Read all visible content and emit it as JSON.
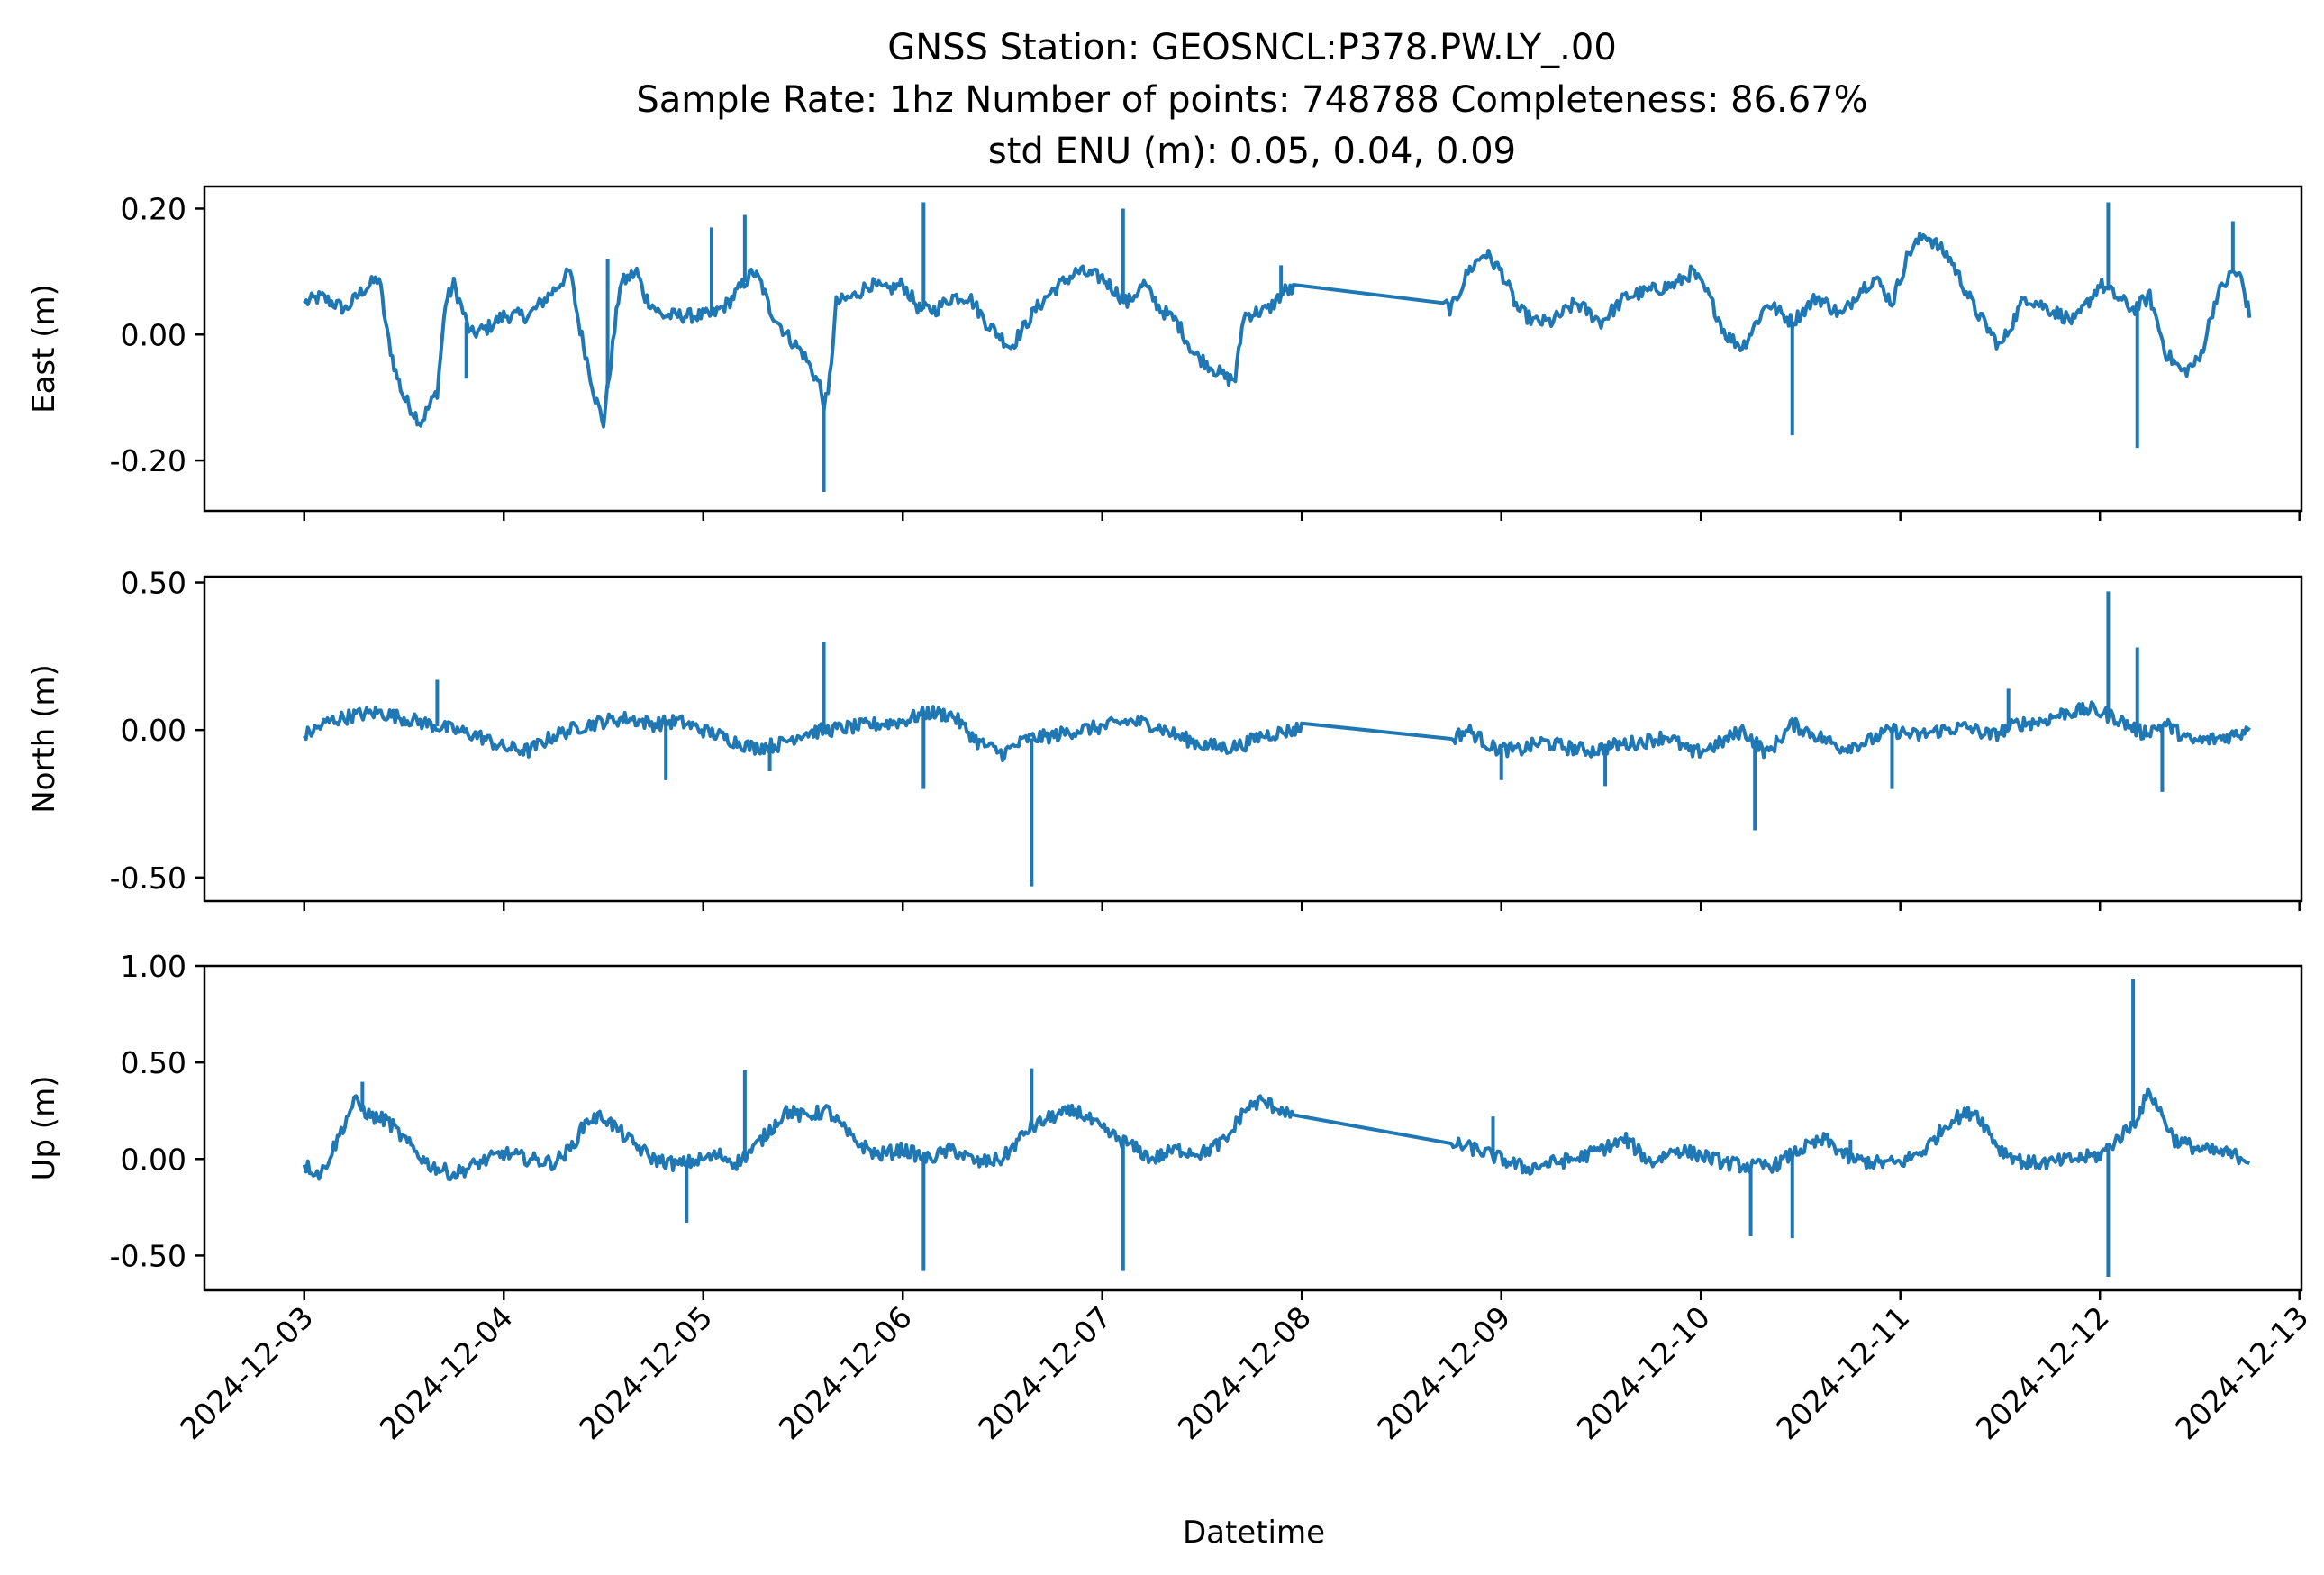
{
  "chart_data": {
    "type": "line",
    "title_lines": [
      "GNSS Station: GEOSNCL:P378.PW.LY_.00",
      "Sample Rate: 1hz   Number of points: 748788    Completeness:  86.67%",
      "std ENU (m):  0.05, 0.04, 0.09"
    ],
    "xlabel": "Datetime",
    "x_ticks": [
      "2024-12-03",
      "2024-12-04",
      "2024-12-05",
      "2024-12-06",
      "2024-12-07",
      "2024-12-08",
      "2024-12-09",
      "2024-12-10",
      "2024-12-11",
      "2024-12-12",
      "2024-12-13"
    ],
    "xlim": [
      "2024-12-02T12:00",
      "2024-12-13T00:15"
    ],
    "grid": false,
    "line_color": "#1f77b4",
    "panels": [
      {
        "ylabel": "East (m)",
        "ylim": [
          -0.28,
          0.235
        ],
        "y_ticks": [
          {
            "value": -0.2,
            "label": "-0.20"
          },
          {
            "value": 0.0,
            "label": "0.00"
          },
          {
            "value": 0.2,
            "label": "0.20"
          }
        ],
        "x": [
          "2024-12-03T00:00",
          "2024-12-03T02:00",
          "2024-12-03T05:00",
          "2024-12-03T07:00",
          "2024-12-03T09:00",
          "2024-12-03T10:00",
          "2024-12-03T11:00",
          "2024-12-03T12:00",
          "2024-12-03T13:00",
          "2024-12-03T14:00",
          "2024-12-03T16:00",
          "2024-12-03T17:00",
          "2024-12-03T18:00",
          "2024-12-03T20:00",
          "2024-12-03T22:00",
          "2024-12-04T00:00",
          "2024-12-04T03:00",
          "2024-12-04T06:00",
          "2024-12-04T08:00",
          "2024-12-04T09:00",
          "2024-12-04T10:00",
          "2024-12-04T11:00",
          "2024-12-04T12:00",
          "2024-12-04T14:00",
          "2024-12-04T16:00",
          "2024-12-04T17:00",
          "2024-12-04T19:00",
          "2024-12-04T22:00",
          "2024-12-05T01:00",
          "2024-12-05T03:00",
          "2024-12-05T06:00",
          "2024-12-05T07:00",
          "2024-12-05T08:00",
          "2024-12-05T10:00",
          "2024-12-05T12:00",
          "2024-12-05T14:00",
          "2024-12-05T14:30",
          "2024-12-05T15:00",
          "2024-12-05T16:00",
          "2024-12-05T18:00",
          "2024-12-05T20:00",
          "2024-12-05T22:00",
          "2024-12-06T00:00",
          "2024-12-06T02:00",
          "2024-12-06T04:00",
          "2024-12-06T06:00",
          "2024-12-06T08:00",
          "2024-12-06T10:00",
          "2024-12-06T13:00",
          "2024-12-06T16:00",
          "2024-12-06T18:00",
          "2024-12-06T21:00",
          "2024-12-07T00:00",
          "2024-12-07T03:00",
          "2024-12-07T05:00",
          "2024-12-07T07:00",
          "2024-12-07T09:00",
          "2024-12-07T11:00",
          "2024-12-07T13:00",
          "2024-12-07T15:00",
          "2024-12-07T16:00",
          "2024-12-07T17:00",
          "2024-12-07T20:00",
          "2024-12-07T22:00",
          "2024-12-07T23:00",
          "2024-12-08T17:00",
          "2024-12-08T18:00",
          "2024-12-08T20:00",
          "2024-12-08T22:00",
          "2024-12-09T00:00",
          "2024-12-09T02:00",
          "2024-12-09T04:00",
          "2024-12-09T06:00",
          "2024-12-09T09:00",
          "2024-12-09T12:00",
          "2024-12-09T15:00",
          "2024-12-09T18:00",
          "2024-12-09T21:00",
          "2024-12-09T23:00",
          "2024-12-10T01:00",
          "2024-12-10T03:00",
          "2024-12-10T05:00",
          "2024-12-10T08:00",
          "2024-12-10T11:00",
          "2024-12-10T14:00",
          "2024-12-10T17:00",
          "2024-12-10T19:00",
          "2024-12-10T21:00",
          "2024-12-10T23:00",
          "2024-12-11T01:00",
          "2024-12-11T03:00",
          "2024-12-11T06:00",
          "2024-12-11T09:00",
          "2024-12-11T12:00",
          "2024-12-11T15:00",
          "2024-12-11T18:00",
          "2024-12-11T21:00",
          "2024-12-12T00:00",
          "2024-12-12T02:00",
          "2024-12-12T04:00",
          "2024-12-12T06:00",
          "2024-12-12T08:00",
          "2024-12-12T10:00",
          "2024-12-12T12:00",
          "2024-12-12T14:00",
          "2024-12-12T16:00",
          "2024-12-12T17:00",
          "2024-12-12T18:00"
        ],
        "y": [
          0.05,
          0.06,
          0.04,
          0.07,
          0.09,
          0.0,
          -0.06,
          -0.1,
          -0.12,
          -0.14,
          -0.09,
          0.05,
          0.08,
          0.0,
          0.01,
          0.03,
          0.03,
          0.07,
          0.1,
          0.02,
          -0.04,
          -0.1,
          -0.14,
          0.08,
          0.1,
          0.06,
          0.03,
          0.03,
          0.03,
          0.05,
          0.1,
          0.08,
          0.04,
          0.0,
          -0.03,
          -0.08,
          -0.11,
          -0.1,
          0.05,
          0.06,
          0.08,
          0.07,
          0.08,
          0.04,
          0.04,
          0.06,
          0.06,
          0.02,
          -0.02,
          0.04,
          0.07,
          0.1,
          0.09,
          0.05,
          0.08,
          0.04,
          0.02,
          -0.03,
          -0.05,
          -0.07,
          -0.07,
          0.03,
          0.04,
          0.07,
          0.07,
          0.05,
          0.04,
          0.1,
          0.13,
          0.1,
          0.04,
          0.02,
          0.02,
          0.05,
          0.02,
          0.06,
          0.07,
          0.08,
          0.1,
          0.06,
          0.0,
          -0.02,
          0.05,
          0.02,
          0.06,
          0.03,
          0.07,
          0.09,
          0.05,
          0.13,
          0.16,
          0.12,
          0.04,
          -0.02,
          0.06,
          0.04,
          0.02,
          0.08,
          0.06,
          0.04,
          0.06,
          -0.03,
          -0.06,
          -0.04,
          0.06,
          0.1,
          0.09,
          0.03
        ],
        "spikes": [
          {
            "x": "2024-12-05T05:00",
            "y": 0.19
          },
          {
            "x": "2024-12-05T14:30",
            "y": -0.25
          },
          {
            "x": "2024-12-06T02:30",
            "y": 0.21
          },
          {
            "x": "2024-12-07T02:30",
            "y": 0.2
          },
          {
            "x": "2024-12-10T11:00",
            "y": -0.16
          },
          {
            "x": "2024-12-12T01:00",
            "y": 0.21
          },
          {
            "x": "2024-12-12T04:30",
            "y": -0.18
          },
          {
            "x": "2024-12-12T16:00",
            "y": 0.18
          },
          {
            "x": "2024-12-04T12:30",
            "y": 0.12
          },
          {
            "x": "2024-12-03T19:30",
            "y": -0.07
          },
          {
            "x": "2024-12-07T21:30",
            "y": 0.11
          },
          {
            "x": "2024-12-05T01:00",
            "y": 0.17
          }
        ]
      },
      {
        "ylabel": "North (m)",
        "ylim": [
          -0.58,
          0.52
        ],
        "y_ticks": [
          {
            "value": -0.5,
            "label": "-0.50"
          },
          {
            "value": 0.0,
            "label": "0.00"
          },
          {
            "value": 0.5,
            "label": "0.50"
          }
        ],
        "x": [
          "2024-12-03T00:00",
          "2024-12-03T03:00",
          "2024-12-03T06:00",
          "2024-12-03T09:00",
          "2024-12-03T12:00",
          "2024-12-03T15:00",
          "2024-12-03T18:00",
          "2024-12-03T21:00",
          "2024-12-04T00:00",
          "2024-12-04T03:00",
          "2024-12-04T06:00",
          "2024-12-04T09:00",
          "2024-12-04T12:00",
          "2024-12-04T15:00",
          "2024-12-04T18:00",
          "2024-12-04T21:00",
          "2024-12-05T00:00",
          "2024-12-05T03:00",
          "2024-12-05T06:00",
          "2024-12-05T09:00",
          "2024-12-05T12:00",
          "2024-12-05T15:00",
          "2024-12-05T18:00",
          "2024-12-05T21:00",
          "2024-12-06T00:00",
          "2024-12-06T03:00",
          "2024-12-06T06:00",
          "2024-12-06T09:00",
          "2024-12-06T12:00",
          "2024-12-06T15:00",
          "2024-12-06T18:00",
          "2024-12-06T21:00",
          "2024-12-07T00:00",
          "2024-12-07T03:00",
          "2024-12-07T06:00",
          "2024-12-07T09:00",
          "2024-12-07T12:00",
          "2024-12-07T15:00",
          "2024-12-07T17:00",
          "2024-12-07T19:00",
          "2024-12-07T21:00",
          "2024-12-07T23:00",
          "2024-12-08T00:00",
          "2024-12-08T18:00",
          "2024-12-08T20:00",
          "2024-12-08T23:00",
          "2024-12-09T02:00",
          "2024-12-09T05:00",
          "2024-12-09T08:00",
          "2024-12-09T11:00",
          "2024-12-09T14:00",
          "2024-12-09T17:00",
          "2024-12-09T20:00",
          "2024-12-09T23:00",
          "2024-12-10T02:00",
          "2024-12-10T05:00",
          "2024-12-10T08:00",
          "2024-12-10T11:00",
          "2024-12-10T14:00",
          "2024-12-10T17:00",
          "2024-12-10T20:00",
          "2024-12-10T23:00",
          "2024-12-11T02:00",
          "2024-12-11T05:00",
          "2024-12-11T08:00",
          "2024-12-11T11:00",
          "2024-12-11T14:00",
          "2024-12-11T17:00",
          "2024-12-11T20:00",
          "2024-12-11T23:00",
          "2024-12-12T02:00",
          "2024-12-12T05:00",
          "2024-12-12T08:00",
          "2024-12-12T11:00",
          "2024-12-12T14:00",
          "2024-12-12T17:00",
          "2024-12-12T18:00"
        ],
        "y": [
          -0.02,
          0.03,
          0.05,
          0.06,
          0.04,
          0.02,
          0.0,
          -0.02,
          -0.06,
          -0.07,
          -0.02,
          0.01,
          0.03,
          0.04,
          0.02,
          0.03,
          0.0,
          -0.03,
          -0.06,
          -0.05,
          -0.01,
          0.0,
          0.01,
          0.02,
          0.03,
          0.06,
          0.05,
          -0.04,
          -0.08,
          -0.03,
          -0.02,
          0.0,
          0.01,
          0.03,
          0.02,
          -0.02,
          -0.05,
          -0.06,
          -0.05,
          -0.02,
          -0.01,
          0.0,
          0.01,
          -0.03,
          0.0,
          -0.06,
          -0.07,
          -0.04,
          -0.06,
          -0.07,
          -0.05,
          -0.04,
          -0.02,
          -0.08,
          -0.05,
          0.0,
          -0.08,
          0.02,
          -0.02,
          -0.06,
          -0.04,
          0.0,
          -0.02,
          0.0,
          0.01,
          -0.02,
          0.02,
          0.03,
          0.06,
          0.07,
          0.04,
          -0.01,
          0.02,
          -0.04,
          -0.03,
          -0.01,
          0.02
        ],
        "spikes": [
          {
            "x": "2024-12-05T14:30",
            "y": 0.3
          },
          {
            "x": "2024-12-06T15:30",
            "y": -0.53
          },
          {
            "x": "2024-12-10T06:30",
            "y": -0.34
          },
          {
            "x": "2024-12-12T01:00",
            "y": 0.47
          },
          {
            "x": "2024-12-12T04:30",
            "y": 0.28
          },
          {
            "x": "2024-12-12T07:30",
            "y": -0.21
          },
          {
            "x": "2024-12-03T16:00",
            "y": 0.17
          },
          {
            "x": "2024-12-04T19:30",
            "y": -0.17
          },
          {
            "x": "2024-12-06T02:30",
            "y": -0.2
          },
          {
            "x": "2024-12-09T00:00",
            "y": -0.17
          },
          {
            "x": "2024-12-09T12:30",
            "y": -0.19
          },
          {
            "x": "2024-12-10T23:00",
            "y": -0.2
          },
          {
            "x": "2024-12-11T13:00",
            "y": 0.14
          },
          {
            "x": "2024-12-05T08:00",
            "y": -0.14
          }
        ]
      },
      {
        "ylabel": "Up (m)",
        "ylim": [
          -0.68,
          1.0
        ],
        "y_ticks": [
          {
            "value": -0.5,
            "label": "-0.50"
          },
          {
            "value": 0.0,
            "label": "0.00"
          },
          {
            "value": 0.5,
            "label": "0.50"
          },
          {
            "value": 1.0,
            "label": "1.00"
          }
        ],
        "x": [
          "2024-12-03T00:00",
          "2024-12-03T02:00",
          "2024-12-03T04:00",
          "2024-12-03T06:00",
          "2024-12-03T08:00",
          "2024-12-03T10:00",
          "2024-12-03T12:00",
          "2024-12-03T15:00",
          "2024-12-03T18:00",
          "2024-12-03T21:00",
          "2024-12-04T00:00",
          "2024-12-04T03:00",
          "2024-12-04T06:00",
          "2024-12-04T08:00",
          "2024-12-04T10:00",
          "2024-12-04T12:00",
          "2024-12-04T15:00",
          "2024-12-04T18:00",
          "2024-12-04T21:00",
          "2024-12-05T00:00",
          "2024-12-05T02:00",
          "2024-12-05T04:00",
          "2024-12-05T06:00",
          "2024-12-05T08:00",
          "2024-12-05T10:00",
          "2024-12-05T12:00",
          "2024-12-05T15:00",
          "2024-12-05T18:00",
          "2024-12-05T21:00",
          "2024-12-06T00:00",
          "2024-12-06T03:00",
          "2024-12-06T06:00",
          "2024-12-06T09:00",
          "2024-12-06T12:00",
          "2024-12-06T15:00",
          "2024-12-06T18:00",
          "2024-12-06T21:00",
          "2024-12-07T00:00",
          "2024-12-07T03:00",
          "2024-12-07T06:00",
          "2024-12-07T09:00",
          "2024-12-07T12:00",
          "2024-12-07T15:00",
          "2024-12-07T17:00",
          "2024-12-07T19:00",
          "2024-12-07T22:00",
          "2024-12-07T23:00",
          "2024-12-08T18:00",
          "2024-12-08T21:00",
          "2024-12-09T00:00",
          "2024-12-09T03:00",
          "2024-12-09T06:00",
          "2024-12-09T09:00",
          "2024-12-09T12:00",
          "2024-12-09T15:00",
          "2024-12-09T18:00",
          "2024-12-09T21:00",
          "2024-12-10T00:00",
          "2024-12-10T03:00",
          "2024-12-10T06:00",
          "2024-12-10T09:00",
          "2024-12-10T12:00",
          "2024-12-10T15:00",
          "2024-12-10T18:00",
          "2024-12-10T21:00",
          "2024-12-11T00:00",
          "2024-12-11T03:00",
          "2024-12-11T06:00",
          "2024-12-11T09:00",
          "2024-12-11T12:00",
          "2024-12-11T15:00",
          "2024-12-11T18:00",
          "2024-12-11T21:00",
          "2024-12-12T00:00",
          "2024-12-12T02:00",
          "2024-12-12T04:00",
          "2024-12-12T06:00",
          "2024-12-12T09:00",
          "2024-12-12T12:00",
          "2024-12-12T15:00",
          "2024-12-12T18:00"
        ],
        "y": [
          -0.03,
          -0.08,
          0.1,
          0.3,
          0.22,
          0.2,
          0.1,
          -0.03,
          -0.08,
          -0.02,
          0.03,
          0.0,
          -0.02,
          0.05,
          0.2,
          0.22,
          0.1,
          0.0,
          -0.03,
          0.0,
          0.02,
          -0.02,
          0.05,
          0.15,
          0.25,
          0.22,
          0.25,
          0.1,
          0.02,
          0.05,
          0.0,
          0.05,
          -0.02,
          0.0,
          0.15,
          0.22,
          0.25,
          0.15,
          0.08,
          0.0,
          0.05,
          0.03,
          0.1,
          0.25,
          0.3,
          0.25,
          0.2,
          0.08,
          0.05,
          0.0,
          -0.05,
          -0.02,
          0.0,
          0.05,
          0.1,
          -0.02,
          0.05,
          0.02,
          -0.02,
          -0.04,
          -0.03,
          0.05,
          0.1,
          0.0,
          -0.02,
          -0.02,
          0.05,
          0.2,
          0.25,
          0.05,
          -0.02,
          -0.02,
          0.0,
          0.02,
          0.1,
          0.18,
          0.35,
          0.1,
          0.05,
          0.03,
          0.0
        ],
        "spikes": [
          {
            "x": "2024-12-06T02:30",
            "y": -0.58
          },
          {
            "x": "2024-12-06T15:30",
            "y": 0.47
          },
          {
            "x": "2024-12-07T02:30",
            "y": -0.58
          },
          {
            "x": "2024-12-12T01:00",
            "y": -0.61
          },
          {
            "x": "2024-12-12T04:00",
            "y": 0.93
          },
          {
            "x": "2024-12-10T06:00",
            "y": -0.4
          },
          {
            "x": "2024-12-10T11:00",
            "y": -0.41
          },
          {
            "x": "2024-12-05T05:00",
            "y": 0.46
          },
          {
            "x": "2024-12-04T22:00",
            "y": -0.33
          },
          {
            "x": "2024-12-03T07:00",
            "y": 0.4
          },
          {
            "x": "2024-12-10T18:00",
            "y": 0.1
          },
          {
            "x": "2024-12-08T23:00",
            "y": 0.22
          }
        ]
      }
    ]
  }
}
